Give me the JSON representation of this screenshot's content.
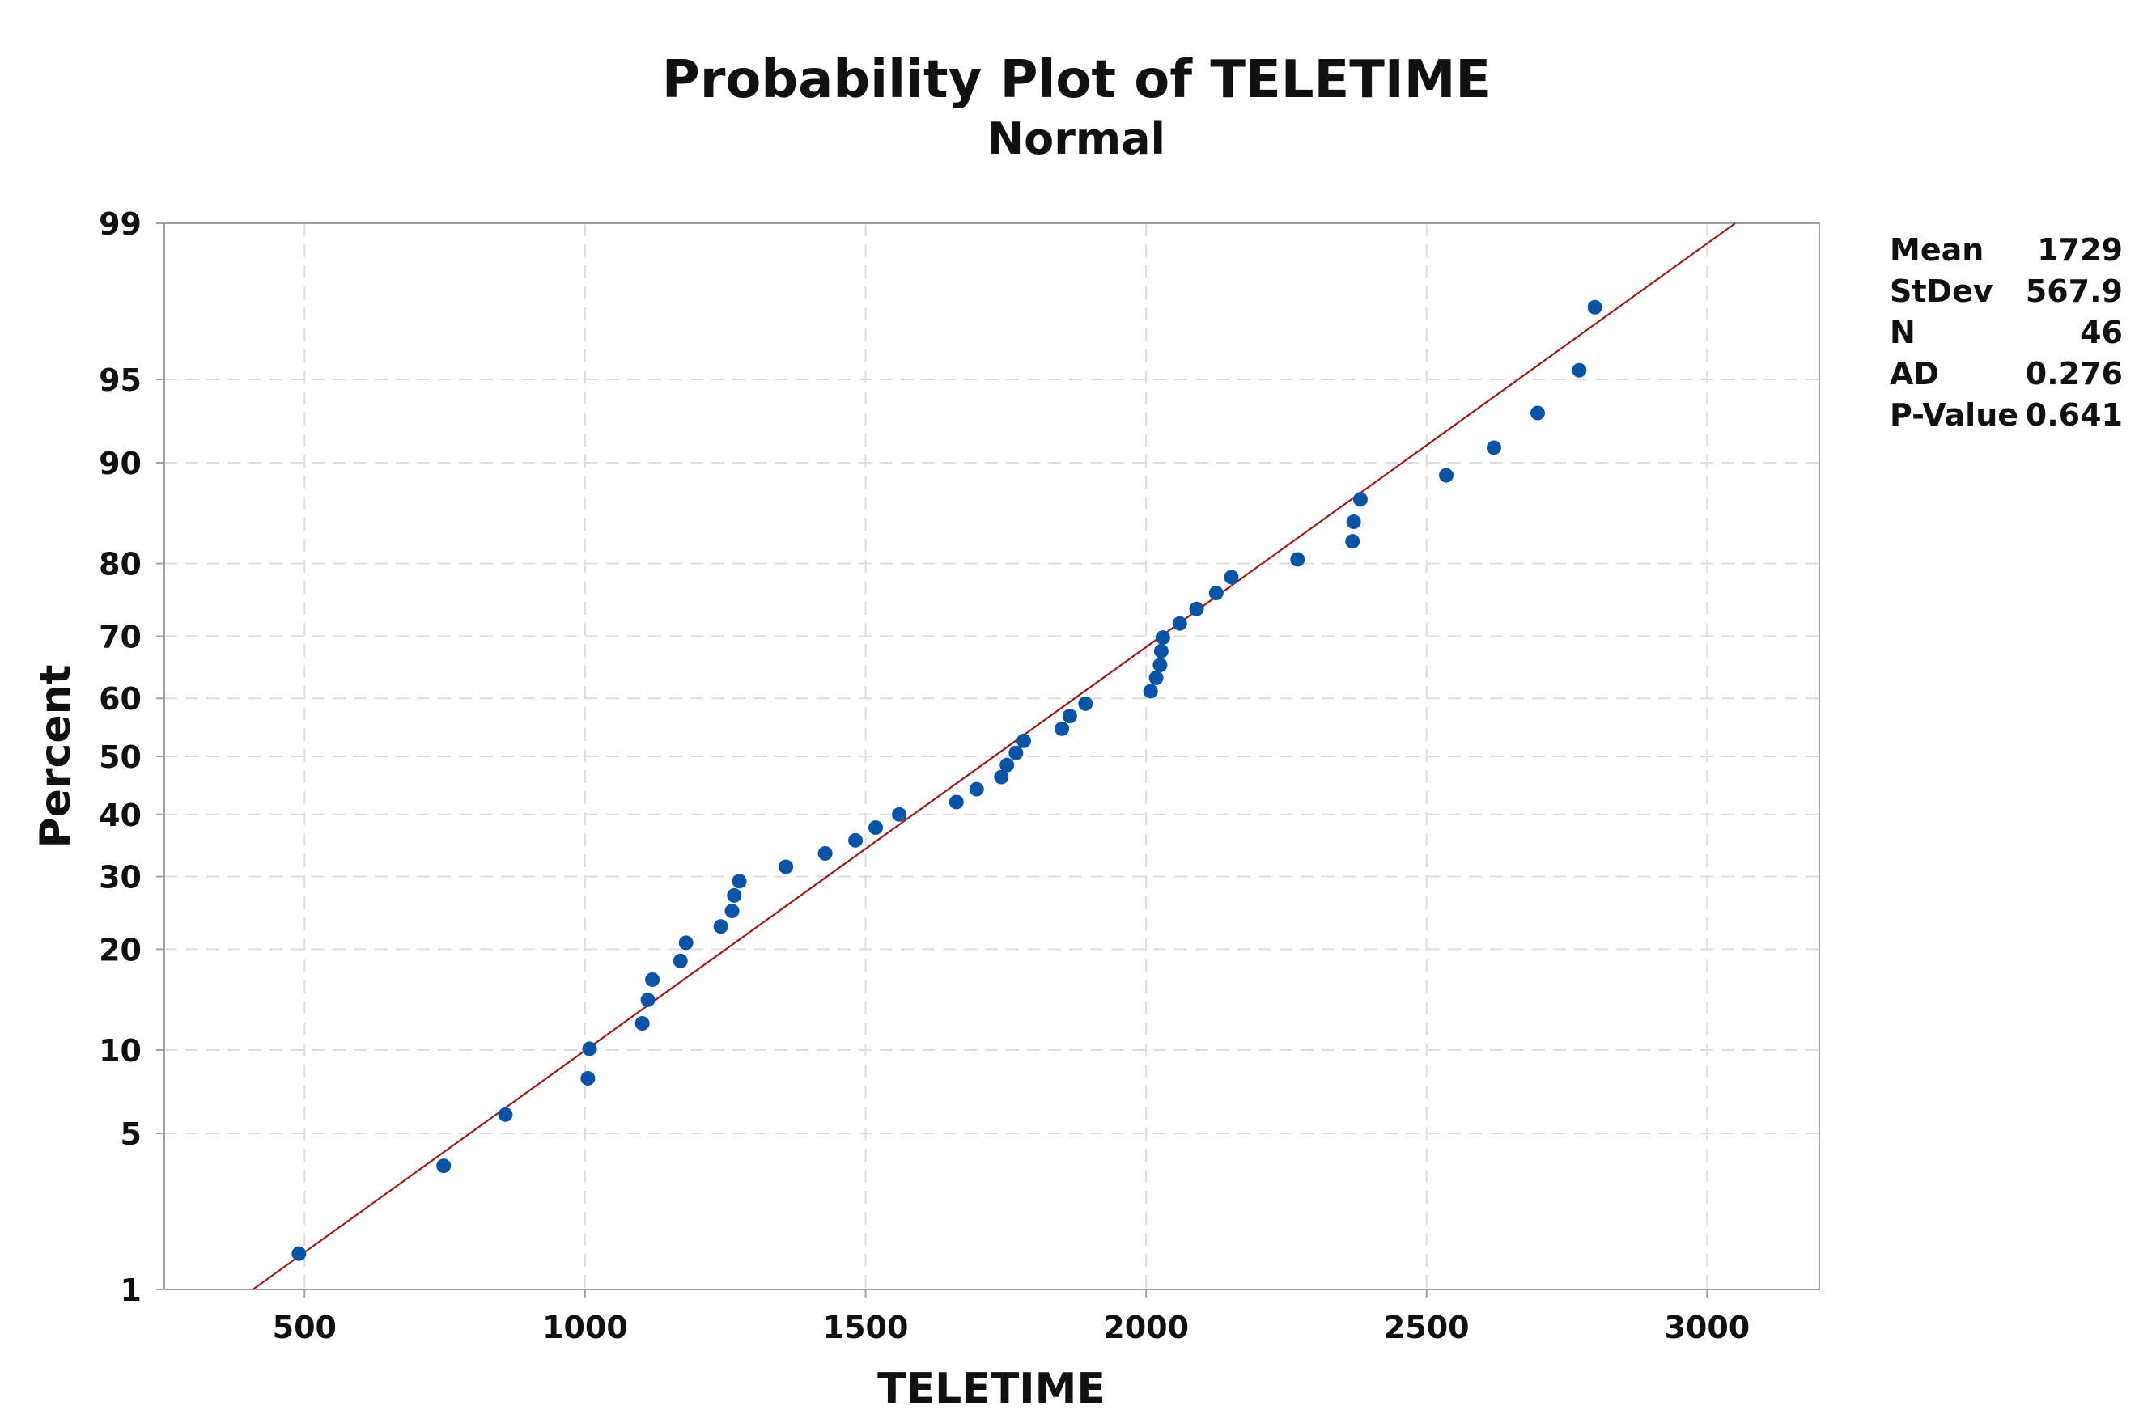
{
  "chart_data": {
    "type": "scatter",
    "title": "Probability Plot of TELETIME",
    "subtitle": "Normal",
    "xlabel": "TELETIME",
    "ylabel": "Percent",
    "x_scale": "linear",
    "y_scale": "normal-probability",
    "xlim": [
      250,
      3200
    ],
    "ylim": [
      1,
      99
    ],
    "x_ticks": [
      500,
      1000,
      1500,
      2000,
      2500,
      3000
    ],
    "y_ticks": [
      1,
      5,
      10,
      20,
      30,
      40,
      50,
      60,
      70,
      80,
      90,
      95,
      99
    ],
    "grid": true,
    "fit_line": {
      "mean": 1729,
      "stdev": 567.9,
      "color": "#9a1a1a"
    },
    "point_color": "#0a54a8",
    "points": [
      {
        "x": 490,
        "y": 1.5
      },
      {
        "x": 748,
        "y": 3.7
      },
      {
        "x": 858,
        "y": 5.9
      },
      {
        "x": 1005,
        "y": 8.0
      },
      {
        "x": 1008,
        "y": 10.1
      },
      {
        "x": 1102,
        "y": 12.2
      },
      {
        "x": 1112,
        "y": 14.4
      },
      {
        "x": 1120,
        "y": 16.5
      },
      {
        "x": 1170,
        "y": 18.6
      },
      {
        "x": 1180,
        "y": 20.8
      },
      {
        "x": 1242,
        "y": 22.9
      },
      {
        "x": 1262,
        "y": 25.0
      },
      {
        "x": 1266,
        "y": 27.2
      },
      {
        "x": 1275,
        "y": 29.3
      },
      {
        "x": 1358,
        "y": 31.5
      },
      {
        "x": 1428,
        "y": 33.6
      },
      {
        "x": 1482,
        "y": 35.7
      },
      {
        "x": 1518,
        "y": 37.8
      },
      {
        "x": 1560,
        "y": 40.0
      },
      {
        "x": 1662,
        "y": 42.1
      },
      {
        "x": 1698,
        "y": 44.3
      },
      {
        "x": 1742,
        "y": 46.4
      },
      {
        "x": 1752,
        "y": 48.5
      },
      {
        "x": 1768,
        "y": 50.6
      },
      {
        "x": 1782,
        "y": 52.7
      },
      {
        "x": 1850,
        "y": 54.8
      },
      {
        "x": 1864,
        "y": 57.0
      },
      {
        "x": 1892,
        "y": 59.1
      },
      {
        "x": 2008,
        "y": 61.2
      },
      {
        "x": 2018,
        "y": 63.4
      },
      {
        "x": 2025,
        "y": 65.5
      },
      {
        "x": 2027,
        "y": 67.7
      },
      {
        "x": 2030,
        "y": 69.8
      },
      {
        "x": 2060,
        "y": 71.9
      },
      {
        "x": 2090,
        "y": 74.0
      },
      {
        "x": 2125,
        "y": 76.2
      },
      {
        "x": 2152,
        "y": 78.3
      },
      {
        "x": 2270,
        "y": 80.5
      },
      {
        "x": 2368,
        "y": 82.6
      },
      {
        "x": 2370,
        "y": 84.7
      },
      {
        "x": 2382,
        "y": 86.9
      },
      {
        "x": 2535,
        "y": 89.0
      },
      {
        "x": 2620,
        "y": 91.1
      },
      {
        "x": 2698,
        "y": 93.3
      },
      {
        "x": 2772,
        "y": 95.4
      },
      {
        "x": 2800,
        "y": 97.5
      }
    ]
  },
  "stats": [
    {
      "label": "Mean",
      "value": "1729"
    },
    {
      "label": "StDev",
      "value": "567.9"
    },
    {
      "label": "N",
      "value": "46"
    },
    {
      "label": "AD",
      "value": "0.276"
    },
    {
      "label": "P-Value",
      "value": "0.641"
    }
  ]
}
